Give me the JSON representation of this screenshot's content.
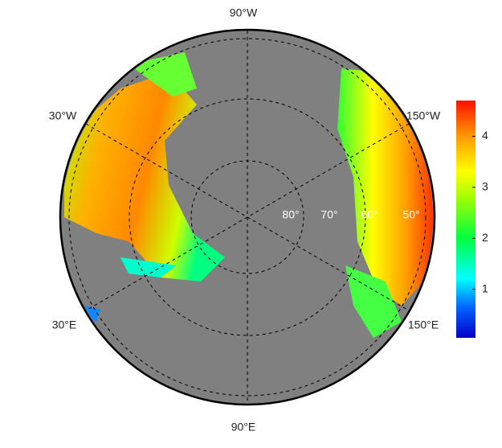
{
  "map": {
    "lon_labels": [
      "90°W",
      "30°W",
      "150°W",
      "30°E",
      "150°E",
      "90°E"
    ],
    "lat_labels": [
      "80°",
      "70°",
      "60°",
      "50°"
    ]
  },
  "colorbar": {
    "range": [
      0.05,
      4.7
    ],
    "ticks": [
      1,
      2,
      3,
      4
    ]
  }
}
